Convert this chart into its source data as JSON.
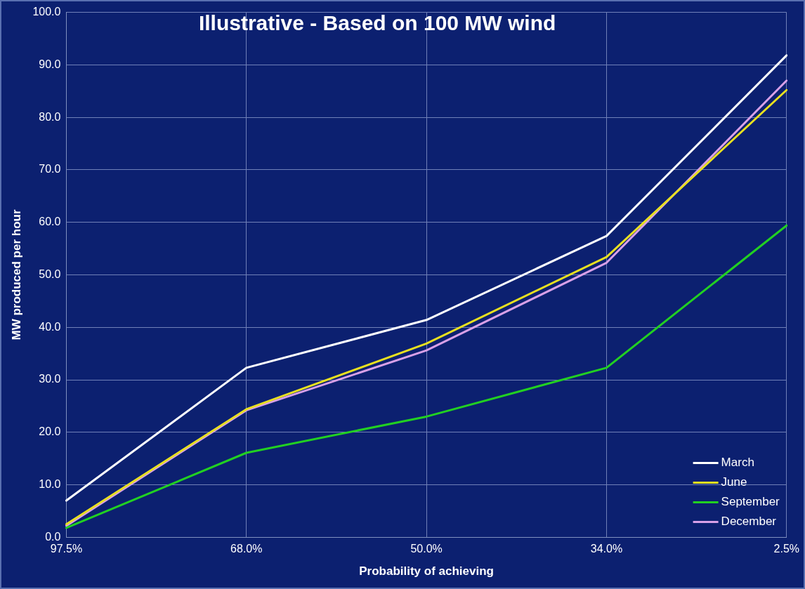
{
  "chart_data": {
    "type": "line",
    "title": "Illustrative - Based on 100 MW wind",
    "xlabel": "Probability of achieving",
    "ylabel": "MW produced per hour",
    "categories": [
      "97.5%",
      "68.0%",
      "50.0%",
      "34.0%",
      "2.5%"
    ],
    "series": [
      {
        "name": "March",
        "color": "#ffffff",
        "values": [
          7.0,
          32.3,
          41.4,
          57.4,
          91.8
        ]
      },
      {
        "name": "June",
        "color": "#e8e020",
        "values": [
          2.5,
          24.4,
          36.9,
          53.4,
          85.2
        ]
      },
      {
        "name": "September",
        "color": "#22d022",
        "values": [
          1.8,
          16.1,
          23.0,
          32.3,
          59.4
        ]
      },
      {
        "name": "December",
        "color": "#d8a0e8",
        "values": [
          2.2,
          24.2,
          35.6,
          52.3,
          87.0
        ]
      }
    ],
    "ylim": [
      0,
      100
    ],
    "yticks": [
      {
        "value": 0,
        "label": "0.0"
      },
      {
        "value": 10,
        "label": "10.0"
      },
      {
        "value": 20,
        "label": "20.0"
      },
      {
        "value": 30,
        "label": "30.0"
      },
      {
        "value": 40,
        "label": "40.0"
      },
      {
        "value": 50,
        "label": "50.0"
      },
      {
        "value": 60,
        "label": "60.0"
      },
      {
        "value": 70,
        "label": "70.0"
      },
      {
        "value": 80,
        "label": "80.0"
      },
      {
        "value": 90,
        "label": "90.0"
      },
      {
        "value": 100,
        "label": "100.0"
      }
    ],
    "grid": true,
    "legend": "bottom right",
    "marker": "none",
    "line_style": "solid"
  }
}
